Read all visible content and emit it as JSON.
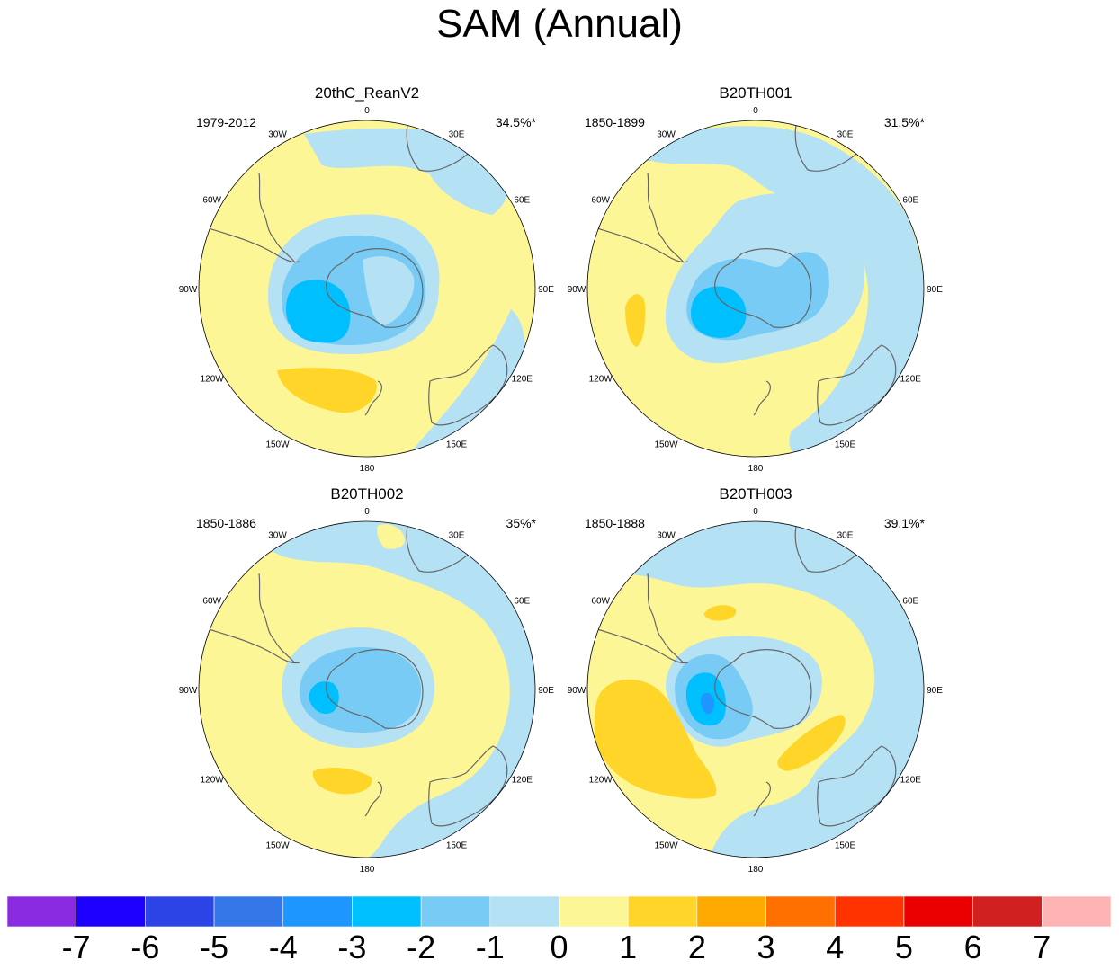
{
  "title": "SAM (Annual)",
  "longitude_labels": [
    "0",
    "30E",
    "60E",
    "90E",
    "120E",
    "150E",
    "180",
    "150W",
    "120W",
    "90W",
    "60W",
    "30W"
  ],
  "panels": [
    {
      "name": "20thC_ReanV2",
      "period": "1979-2012",
      "pct": "34.5%*"
    },
    {
      "name": "B20TH001",
      "period": "1850-1899",
      "pct": "31.5%*"
    },
    {
      "name": "B20TH002",
      "period": "1850-1886",
      "pct": "35%*"
    },
    {
      "name": "B20TH003",
      "period": "1850-1888",
      "pct": "39.1%*"
    }
  ],
  "colorbar": {
    "labels": [
      "-7",
      "-6",
      "-5",
      "-4",
      "-3",
      "-2",
      "-1",
      "0",
      "1",
      "2",
      "3",
      "4",
      "5",
      "6",
      "7"
    ],
    "colors": [
      "#8a2be2",
      "#1e00ff",
      "#2c44e6",
      "#3377e8",
      "#1e96ff",
      "#00bfff",
      "#77cbf4",
      "#b4e1f4",
      "#fcf696",
      "#ffd52a",
      "#ffaa00",
      "#ff7000",
      "#ff3300",
      "#eb0000",
      "#d12020",
      "#ffb4b4"
    ]
  },
  "map_colors": {
    "ocean_pos": "#fcf696",
    "ocean_neg": "#b4e1f4",
    "neg2": "#77cbf4",
    "neg3": "#00bfff",
    "neg4": "#1e96ff",
    "pos2": "#ffd52a",
    "coast": "#666666"
  }
}
